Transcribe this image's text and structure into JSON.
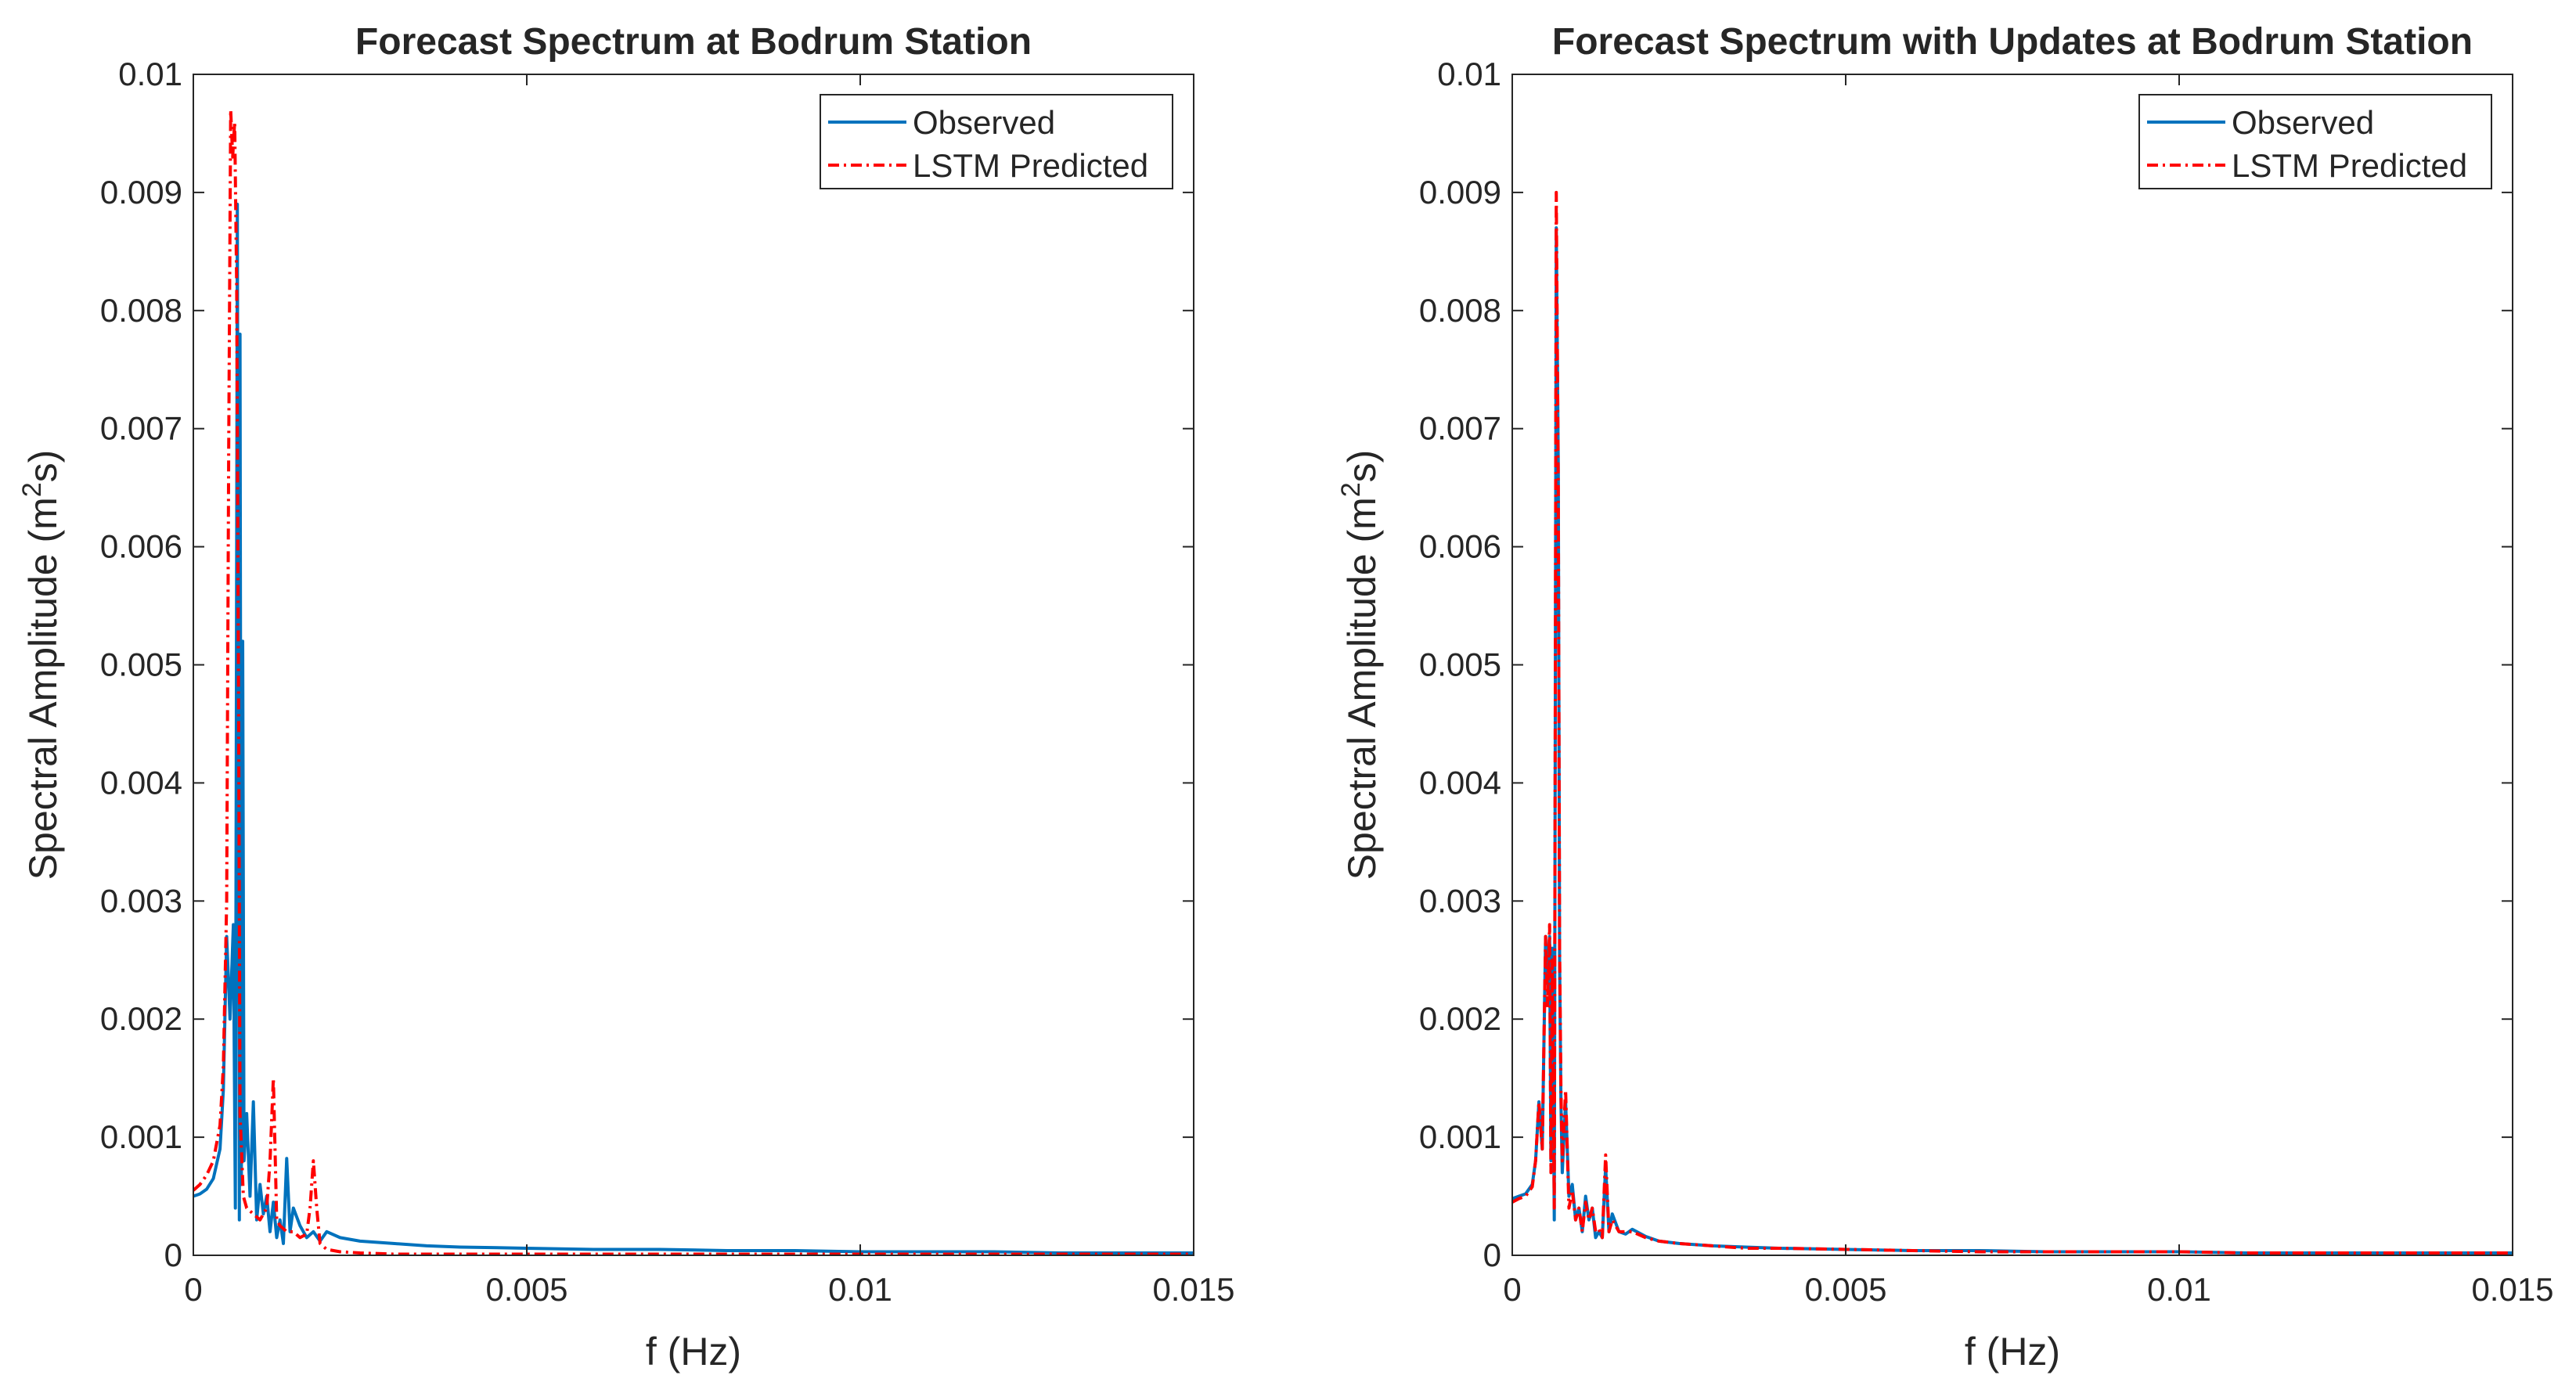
{
  "chart_data": [
    {
      "type": "line",
      "title": "Forecast Spectrum at Bodrum Station",
      "xlabel": "f (Hz)",
      "ylabel": "Spectral Amplitude (m²s)",
      "ylabel_parts": {
        "main": "Spectral Amplitude (m",
        "sup": "2",
        "tail": "s)"
      },
      "xlim": [
        0,
        0.015
      ],
      "ylim": [
        0,
        0.01
      ],
      "xticks": [
        "0",
        "0.005",
        "0.01",
        "0.015"
      ],
      "xtick_values": [
        0,
        0.005,
        0.01,
        0.015
      ],
      "yticks": [
        "0",
        "0.001",
        "0.002",
        "0.003",
        "0.004",
        "0.005",
        "0.006",
        "0.007",
        "0.008",
        "0.009",
        "0.01"
      ],
      "ytick_values": [
        0,
        0.001,
        0.002,
        0.003,
        0.004,
        0.005,
        0.006,
        0.007,
        0.008,
        0.009,
        0.01
      ],
      "grid": false,
      "legend_position": "top-right",
      "series": [
        {
          "name": "Observed",
          "color": "#0072BD",
          "style": "solid",
          "x": [
            0,
            0.0001,
            0.0002,
            0.0003,
            0.0004,
            0.00045,
            0.0005,
            0.00055,
            0.0006,
            0.00063,
            0.00066,
            0.00069,
            0.0007,
            0.00072,
            0.00074,
            0.00076,
            0.0008,
            0.00085,
            0.0009,
            0.00095,
            0.001,
            0.00105,
            0.0011,
            0.00115,
            0.0012,
            0.00125,
            0.0013,
            0.00135,
            0.0014,
            0.00145,
            0.0015,
            0.0016,
            0.0017,
            0.0018,
            0.0019,
            0.002,
            0.0022,
            0.0025,
            0.003,
            0.0035,
            0.004,
            0.005,
            0.006,
            0.007,
            0.008,
            0.009,
            0.01,
            0.011,
            0.012,
            0.013,
            0.014,
            0.015
          ],
          "y": [
            0.0005,
            0.00052,
            0.00056,
            0.00065,
            0.0009,
            0.0014,
            0.0027,
            0.002,
            0.0028,
            0.0004,
            0.0089,
            0.0003,
            0.0078,
            0.0006,
            0.0052,
            0.0008,
            0.0012,
            0.0005,
            0.0013,
            0.0003,
            0.0006,
            0.00035,
            0.0005,
            0.0002,
            0.00045,
            0.00015,
            0.0003,
            0.0001,
            0.00082,
            0.0002,
            0.0004,
            0.00025,
            0.00015,
            0.0002,
            0.00012,
            0.0002,
            0.00015,
            0.00012,
            0.0001,
            8e-05,
            7e-05,
            6e-05,
            5e-05,
            5e-05,
            4e-05,
            4e-05,
            3e-05,
            3e-05,
            3e-05,
            2e-05,
            2e-05,
            2e-05
          ]
        },
        {
          "name": "LSTM Predicted",
          "color": "#FF0000",
          "style": "dashdot",
          "x": [
            0,
            0.0001,
            0.0002,
            0.0003,
            0.0004,
            0.00045,
            0.0005,
            0.00053,
            0.00056,
            0.00059,
            0.00062,
            0.00065,
            0.00068,
            0.0007,
            0.00075,
            0.0008,
            0.0009,
            0.001,
            0.0011,
            0.00115,
            0.0012,
            0.00125,
            0.0013,
            0.0014,
            0.0015,
            0.0016,
            0.0017,
            0.00175,
            0.0018,
            0.00185,
            0.0019,
            0.002,
            0.0022,
            0.0025,
            0.003,
            0.004,
            0.005,
            0.007,
            0.01,
            0.015
          ],
          "y": [
            0.00055,
            0.0006,
            0.00068,
            0.0008,
            0.0011,
            0.0016,
            0.003,
            0.0068,
            0.0097,
            0.0093,
            0.0096,
            0.0082,
            0.0045,
            0.0012,
            0.0005,
            0.0004,
            0.00035,
            0.0003,
            0.0004,
            0.0008,
            0.0015,
            0.0003,
            0.00025,
            0.0002,
            0.0002,
            0.00015,
            0.00018,
            0.0004,
            0.0008,
            0.0004,
            0.0001,
            5e-05,
            3e-05,
            2e-05,
            1e-05,
            1e-05,
            1e-05,
            1e-05,
            1e-05,
            1e-05
          ]
        }
      ]
    },
    {
      "type": "line",
      "title": "Forecast Spectrum with Updates at Bodrum Station",
      "xlabel": "f (Hz)",
      "ylabel": "Spectral Amplitude (m²s)",
      "ylabel_parts": {
        "main": "Spectral Amplitude (m",
        "sup": "2",
        "tail": "s)"
      },
      "xlim": [
        0,
        0.015
      ],
      "ylim": [
        0,
        0.01
      ],
      "xticks": [
        "0",
        "0.005",
        "0.01",
        "0.015"
      ],
      "xtick_values": [
        0,
        0.005,
        0.01,
        0.015
      ],
      "yticks": [
        "0",
        "0.001",
        "0.002",
        "0.003",
        "0.004",
        "0.005",
        "0.006",
        "0.007",
        "0.008",
        "0.009",
        "0.01"
      ],
      "ytick_values": [
        0,
        0.001,
        0.002,
        0.003,
        0.004,
        0.005,
        0.006,
        0.007,
        0.008,
        0.009,
        0.01
      ],
      "grid": false,
      "legend_position": "top-right",
      "series": [
        {
          "name": "Observed",
          "color": "#0072BD",
          "style": "solid",
          "x": [
            0,
            0.0001,
            0.0002,
            0.0003,
            0.00035,
            0.0004,
            0.00045,
            0.0005,
            0.00053,
            0.00056,
            0.00058,
            0.0006,
            0.00063,
            0.00066,
            0.00069,
            0.00071,
            0.00073,
            0.00075,
            0.0008,
            0.00085,
            0.0009,
            0.00095,
            0.001,
            0.00105,
            0.0011,
            0.00115,
            0.0012,
            0.00125,
            0.0013,
            0.00135,
            0.0014,
            0.00145,
            0.0015,
            0.0016,
            0.0017,
            0.0018,
            0.002,
            0.0022,
            0.0025,
            0.003,
            0.0035,
            0.004,
            0.005,
            0.006,
            0.007,
            0.008,
            0.009,
            0.01,
            0.011,
            0.012,
            0.013,
            0.014,
            0.015
          ],
          "y": [
            0.00048,
            0.0005,
            0.00052,
            0.0006,
            0.0008,
            0.0013,
            0.0009,
            0.0027,
            0.0023,
            0.0027,
            0.0008,
            0.0026,
            0.0003,
            0.0087,
            0.0067,
            0.0025,
            0.0013,
            0.0007,
            0.0013,
            0.0005,
            0.0006,
            0.0003,
            0.0004,
            0.0002,
            0.0005,
            0.0003,
            0.0004,
            0.00015,
            0.0002,
            0.00015,
            0.00075,
            0.0002,
            0.00035,
            0.0002,
            0.00018,
            0.00022,
            0.00016,
            0.00012,
            0.0001,
            8e-05,
            7e-05,
            6e-05,
            5e-05,
            4e-05,
            4e-05,
            3e-05,
            3e-05,
            3e-05,
            2e-05,
            2e-05,
            2e-05,
            2e-05,
            2e-05
          ]
        },
        {
          "name": "LSTM Predicted",
          "color": "#FF0000",
          "style": "dashdot",
          "x": [
            0,
            0.0001,
            0.0002,
            0.0003,
            0.00035,
            0.0004,
            0.00045,
            0.0005,
            0.00053,
            0.00056,
            0.00058,
            0.0006,
            0.00063,
            0.00066,
            0.00069,
            0.00071,
            0.00073,
            0.00075,
            0.0008,
            0.00085,
            0.0009,
            0.00095,
            0.001,
            0.00105,
            0.0011,
            0.00115,
            0.0012,
            0.00125,
            0.0013,
            0.00135,
            0.0014,
            0.00145,
            0.0015,
            0.0016,
            0.0017,
            0.0018,
            0.002,
            0.0022,
            0.0025,
            0.003,
            0.0035,
            0.004,
            0.005,
            0.006,
            0.007,
            0.008,
            0.009,
            0.01,
            0.011,
            0.012,
            0.013,
            0.014,
            0.015
          ],
          "y": [
            0.00045,
            0.00048,
            0.0005,
            0.00058,
            0.0008,
            0.0013,
            0.0009,
            0.0027,
            0.0021,
            0.0028,
            0.0007,
            0.0025,
            0.0004,
            0.009,
            0.0065,
            0.0026,
            0.0014,
            0.0008,
            0.0014,
            0.0004,
            0.00055,
            0.0003,
            0.0004,
            0.0002,
            0.00045,
            0.0003,
            0.0004,
            0.0002,
            0.00022,
            0.00015,
            0.00085,
            0.0002,
            0.0003,
            0.0002,
            0.0002,
            0.0002,
            0.00015,
            0.00012,
            0.0001,
            8e-05,
            6e-05,
            6e-05,
            5e-05,
            4e-05,
            3e-05,
            3e-05,
            3e-05,
            3e-05,
            2e-05,
            2e-05,
            2e-05,
            2e-05,
            2e-05
          ]
        }
      ]
    }
  ]
}
